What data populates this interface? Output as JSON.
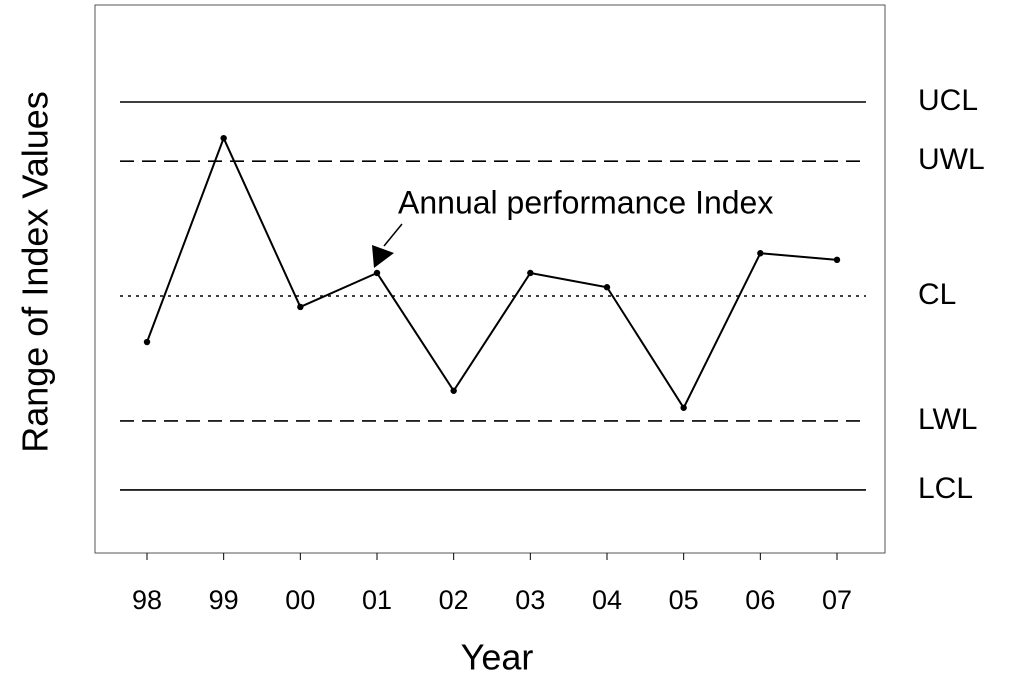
{
  "chart_data": {
    "type": "line",
    "categories": [
      "98",
      "99",
      "00",
      "01",
      "02",
      "03",
      "04",
      "05",
      "06",
      "07"
    ],
    "values": [
      38.5,
      75.7,
      44.9,
      51.1,
      29.6,
      51.1,
      48.5,
      26.5,
      54.7,
      53.5
    ],
    "color": "#000000",
    "ylim": [
      0,
      100
    ],
    "xlabel": "Year",
    "ylabel": "Range of Index Values",
    "annotation": "Annual performance Index",
    "limits": [
      {
        "name": "UCL",
        "value": 82.3,
        "style": "solid"
      },
      {
        "name": "UWL",
        "value": 71.5,
        "style": "dashed"
      },
      {
        "name": "CL",
        "value": 46.9,
        "style": "dotted"
      },
      {
        "name": "LWL",
        "value": 24.1,
        "style": "dashed"
      },
      {
        "name": "LCL",
        "value": 11.5,
        "style": "solid"
      }
    ]
  }
}
